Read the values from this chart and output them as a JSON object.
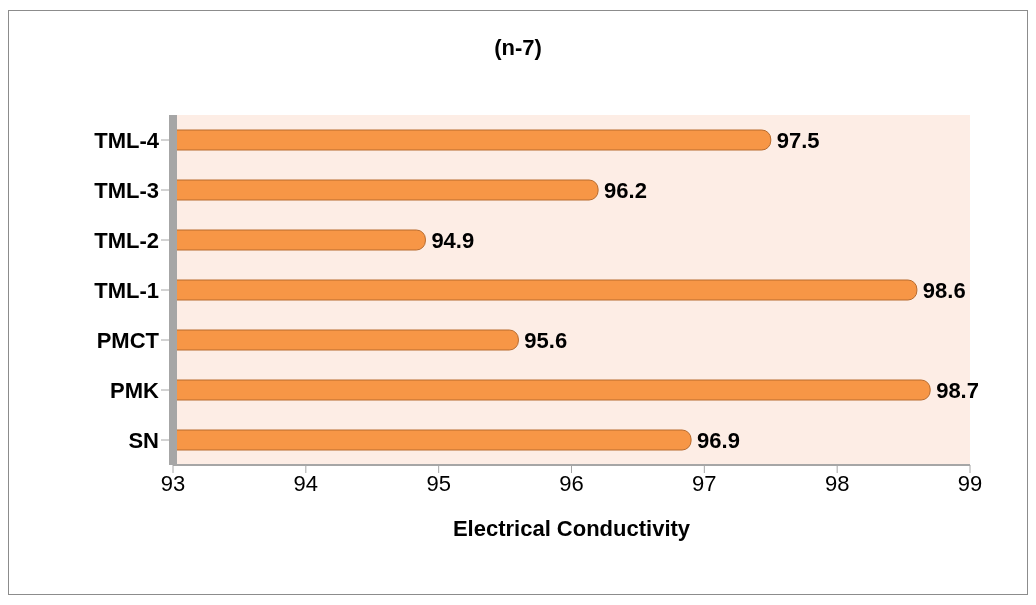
{
  "chart_data": {
    "type": "bar",
    "orientation": "horizontal",
    "title": "(n-7)",
    "xlabel": "Electrical Conductivity",
    "categories": [
      "TML-4",
      "TML-3",
      "TML-2",
      "TML-1",
      "PMCT",
      "PMK",
      "SN"
    ],
    "values": [
      97.5,
      96.2,
      94.9,
      98.6,
      95.6,
      98.7,
      96.9
    ],
    "color": "#f79646",
    "xlim": [
      93,
      99
    ],
    "xticks": [
      93,
      94,
      95,
      96,
      97,
      98,
      99
    ],
    "data_labels": true
  }
}
